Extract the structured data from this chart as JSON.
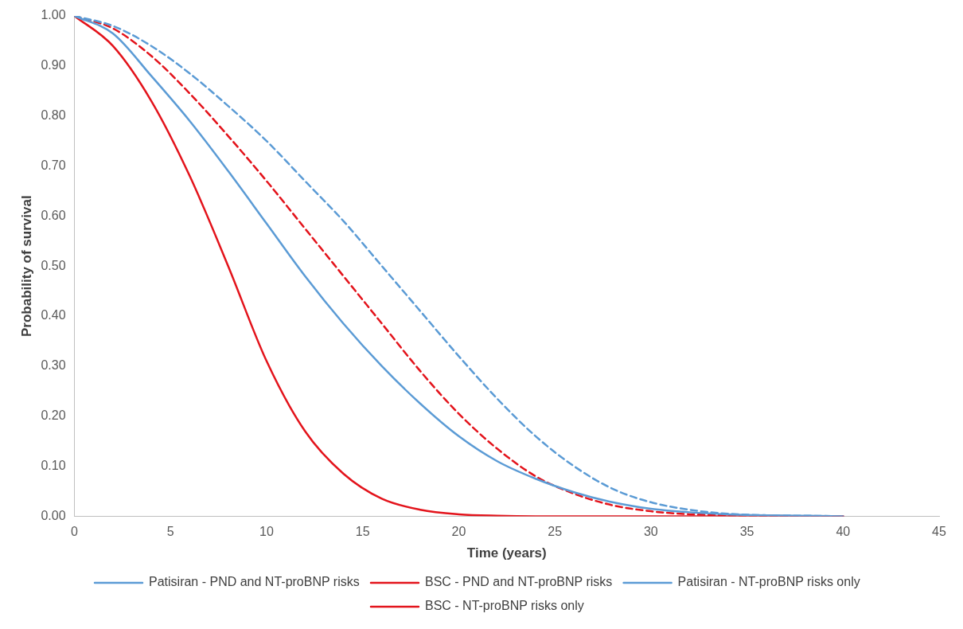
{
  "chart_data": {
    "type": "line",
    "xlabel": "Time (years)",
    "ylabel": "Probability of survival",
    "x": [
      0,
      2,
      4,
      6,
      8,
      10,
      12,
      14,
      16,
      18,
      20,
      22,
      24,
      26,
      28,
      30,
      32,
      34,
      36,
      38,
      40
    ],
    "series": [
      {
        "name": "Patisiran - PND and NT-proBNP risks",
        "color": "#5b9bd5",
        "line_style": "solid",
        "values": [
          1,
          0.965,
          0.88,
          0.79,
          0.69,
          0.585,
          0.48,
          0.385,
          0.3,
          0.225,
          0.16,
          0.11,
          0.075,
          0.048,
          0.028,
          0.015,
          0.008,
          0.004,
          0.002,
          0.001,
          0
        ]
      },
      {
        "name": "BSC - PND and NT-proBNP risks",
        "color": "#e3131b",
        "line_style": "solid",
        "values": [
          1,
          0.94,
          0.83,
          0.68,
          0.5,
          0.31,
          0.17,
          0.085,
          0.035,
          0.013,
          0.004,
          0.001,
          0,
          0,
          0,
          0,
          0,
          0,
          0,
          0,
          0
        ]
      },
      {
        "name": "Patisiran - NT-proBNP risks only",
        "color": "#5b9bd5",
        "line_style": "dashed",
        "values": [
          1,
          0.98,
          0.94,
          0.885,
          0.82,
          0.75,
          0.67,
          0.59,
          0.5,
          0.41,
          0.32,
          0.235,
          0.16,
          0.1,
          0.055,
          0.028,
          0.013,
          0.005,
          0.002,
          0.001,
          0
        ]
      },
      {
        "name": "BSC - NT-proBNP risks only",
        "color": "#e3131b",
        "line_style": "dashed",
        "values": [
          1,
          0.975,
          0.92,
          0.845,
          0.76,
          0.67,
          0.575,
          0.48,
          0.385,
          0.29,
          0.205,
          0.135,
          0.08,
          0.045,
          0.022,
          0.01,
          0.004,
          0.002,
          0.001,
          0,
          0
        ]
      }
    ],
    "xlim": [
      0,
      45
    ],
    "xticks": [
      0,
      5,
      10,
      15,
      20,
      25,
      30,
      35,
      40,
      45
    ],
    "ylim": [
      0,
      1
    ],
    "yticks": [
      {
        "value": 0,
        "label": "0.00"
      },
      {
        "value": 0.1,
        "label": "0.10"
      },
      {
        "value": 0.2,
        "label": "0.20"
      },
      {
        "value": 0.3,
        "label": "0.30"
      },
      {
        "value": 0.4,
        "label": "0.40"
      },
      {
        "value": 0.5,
        "label": "0.50"
      },
      {
        "value": 0.6,
        "label": "0.60"
      },
      {
        "value": 0.7,
        "label": "0.70"
      },
      {
        "value": 0.8,
        "label": "0.80"
      },
      {
        "value": 0.9,
        "label": "0.90"
      },
      {
        "value": 1,
        "label": "1.00"
      }
    ],
    "grid": false,
    "legend": "bottom",
    "marker": "none"
  }
}
